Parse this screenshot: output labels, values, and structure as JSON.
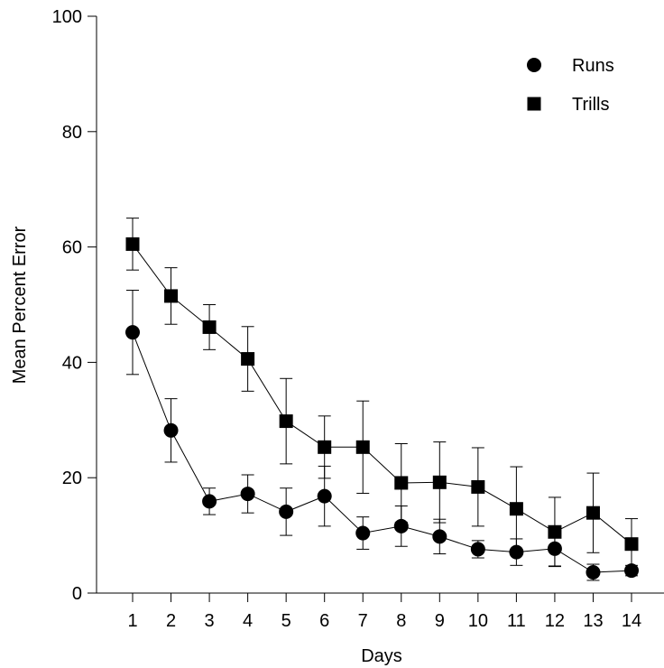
{
  "chart_data": {
    "type": "line",
    "title": "",
    "xlabel": "Days",
    "ylabel": "Mean Percent Error",
    "x": [
      1,
      2,
      3,
      4,
      5,
      6,
      7,
      8,
      9,
      10,
      11,
      12,
      13,
      14
    ],
    "x_ticks": [
      "1",
      "2",
      "3",
      "4",
      "5",
      "6",
      "7",
      "8",
      "9",
      "10",
      "11",
      "12",
      "13",
      "14"
    ],
    "ylim": [
      0,
      100
    ],
    "y_ticks": [
      "0",
      "20",
      "40",
      "60",
      "80",
      "100"
    ],
    "grid": false,
    "legend_position": "top-right",
    "series": [
      {
        "name": "Runs",
        "marker": "circle",
        "color": "#000000",
        "values": [
          45.2,
          28.2,
          15.9,
          17.2,
          14.1,
          16.8,
          10.4,
          11.6,
          9.8,
          7.6,
          7.1,
          7.7,
          3.6,
          3.9
        ],
        "error": [
          7.3,
          5.5,
          2.3,
          3.3,
          4.1,
          5.2,
          2.8,
          3.5,
          3.0,
          1.5,
          2.3,
          3.0,
          1.4,
          0.9
        ]
      },
      {
        "name": "Trills",
        "marker": "square",
        "color": "#000000",
        "values": [
          60.5,
          51.5,
          46.1,
          40.6,
          29.8,
          25.3,
          25.3,
          19.1,
          19.2,
          18.4,
          14.6,
          10.6,
          13.9,
          8.5
        ],
        "error": [
          4.5,
          4.9,
          3.9,
          5.6,
          7.4,
          5.4,
          8.0,
          6.8,
          7.0,
          6.8,
          7.3,
          6.0,
          6.9,
          4.4
        ]
      }
    ]
  }
}
